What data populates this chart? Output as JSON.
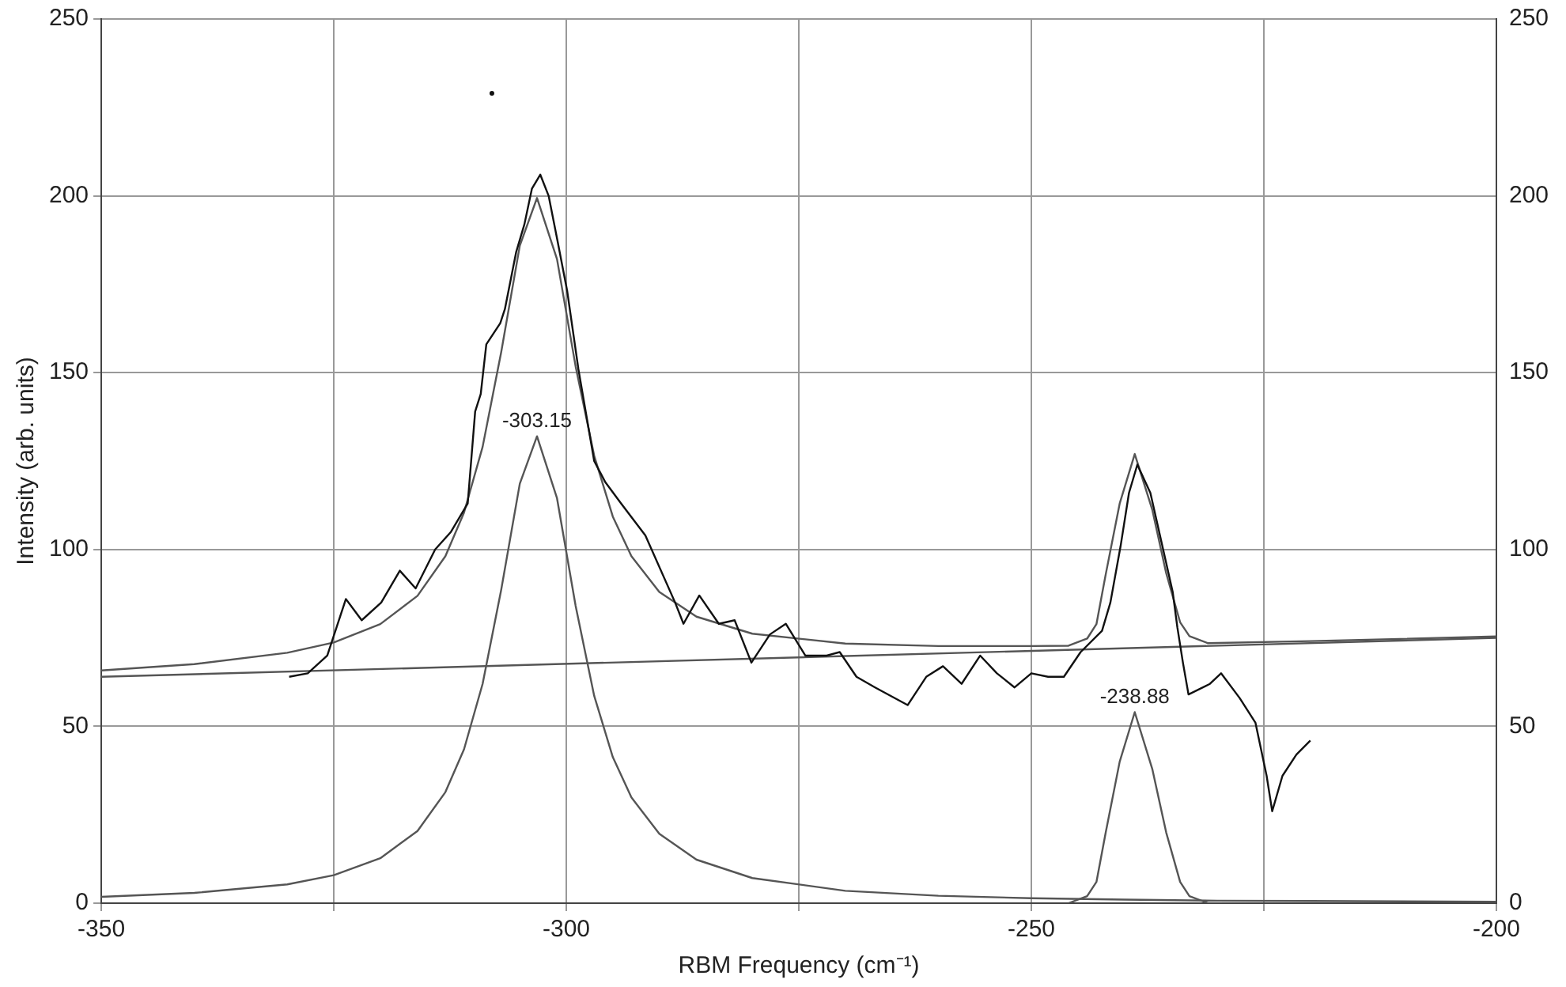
{
  "chart_data": {
    "type": "line",
    "xlabel": "RBM Frequency (cm⁻¹)",
    "ylabel": "Intensity (arb. units)",
    "xlim": [
      -350,
      -200
    ],
    "xticks": [
      -350,
      {
        "value": -325,
        "label": null
      },
      -300,
      {
        "value": -275,
        "label": null
      },
      -250,
      {
        "value": -225,
        "label": null
      },
      -200
    ],
    "ylim": [
      0,
      250
    ],
    "yticks": [
      0,
      50,
      100,
      150,
      200,
      250
    ],
    "y2lim": [
      0,
      250
    ],
    "y2ticks": [
      0,
      50,
      100,
      150,
      200,
      250
    ],
    "grid": true,
    "line_style": "solid",
    "annotations": [
      {
        "text": "-303.15",
        "x": -303.15,
        "y": 132
      },
      {
        "text": "-238.88",
        "x": -238.88,
        "y": 54
      }
    ],
    "series": [
      {
        "type": "line",
        "color": "#111111",
        "x": [
          -329.8,
          -327.8,
          -325.7,
          -323.7,
          -322.0,
          -319.9,
          -317.9,
          -316.2,
          -314.1,
          -312.4,
          -310.6,
          -309.8,
          -309.2,
          -308.9,
          -308.6,
          -307.1,
          -306.6,
          -305.4,
          -304.5,
          -303.7,
          -302.8,
          -301.9,
          -301.0,
          -299.9,
          -298.7,
          -297.0,
          -295.8,
          -294.1,
          -291.5,
          -288.3,
          -287.4,
          -285.7,
          -283.6,
          -281.9,
          -280.1,
          -278.1,
          -276.4,
          -274.3,
          -272.0,
          -270.6,
          -268.8,
          -266.8,
          -263.3,
          -261.3,
          -259.5,
          -257.5,
          -255.5,
          -253.7,
          -251.8,
          -250.0,
          -248.2,
          -246.5,
          -244.7,
          -242.4,
          -241.5,
          -240.4,
          -239.5,
          -238.6,
          -237.2,
          -236.0,
          -234.8,
          -234.3,
          -233.7,
          -233.1,
          -230.8,
          -229.6,
          -227.6,
          -225.9,
          -224.7,
          -224.1,
          -223.0,
          -221.5,
          -220.0
        ],
        "values": [
          64,
          65,
          70,
          86,
          80,
          85,
          94,
          89,
          100,
          105,
          113,
          139,
          144,
          151,
          158,
          164,
          168,
          184,
          192,
          202,
          206,
          200,
          188,
          173,
          151,
          125,
          119,
          113,
          104,
          85,
          79,
          87,
          79,
          80,
          68,
          76,
          79,
          70,
          70,
          71,
          64,
          61,
          56,
          64,
          67,
          62,
          70,
          65,
          61,
          65,
          64,
          64,
          71,
          77,
          85,
          101,
          116,
          124,
          116,
          102,
          88,
          78,
          68,
          59,
          62,
          65,
          58,
          51,
          36,
          26,
          36,
          42,
          46
        ]
      },
      {
        "type": "scatter",
        "color": "#111111",
        "x": [
          -308
        ],
        "values": [
          229
        ]
      },
      {
        "type": "line",
        "color": "#555555",
        "x": [
          -350,
          -340,
          -330,
          -325,
          -320,
          -316,
          -313,
          -311,
          -309,
          -307,
          -305,
          -303.15,
          -301,
          -299,
          -297,
          -295,
          -293,
          -290,
          -286,
          -280,
          -270,
          -260,
          -250,
          -246,
          -244,
          -243,
          -242,
          -240.5,
          -238.88,
          -237,
          -235.5,
          -234,
          -233,
          -231,
          -220,
          -200
        ],
        "values": [
          65.8,
          67.6,
          70.8,
          73.7,
          78.9,
          86.9,
          98.1,
          110.4,
          129,
          155.8,
          185.9,
          199.4,
          182.1,
          151.8,
          126.5,
          109.3,
          98.1,
          88,
          81,
          76.2,
          73.4,
          72.7,
          72.7,
          72.8,
          74.8,
          78.9,
          93,
          113,
          127,
          111.3,
          93.3,
          79.4,
          75.5,
          73.5,
          74.1,
          75.4
        ]
      },
      {
        "type": "line",
        "color": "#555555",
        "x": [
          -350,
          -200
        ],
        "values": [
          64,
          75
        ]
      },
      {
        "type": "line",
        "color": "#555555",
        "x": [
          -350,
          -340,
          -330,
          -325,
          -320,
          -316,
          -313,
          -311,
          -309,
          -307,
          -305,
          -303.15,
          -301,
          -299,
          -297,
          -295,
          -293,
          -290,
          -286,
          -280,
          -270,
          -260,
          -250,
          -240,
          -230,
          -220,
          -200
        ],
        "values": [
          1.8,
          2.9,
          5.3,
          7.9,
          12.7,
          20.4,
          31.4,
          43.5,
          62,
          88.6,
          118.6,
          132,
          114.5,
          84.1,
          58.6,
          41.3,
          29.9,
          19.6,
          12.3,
          7.1,
          3.5,
          2.1,
          1.4,
          1,
          0.7,
          0.6,
          0.4
        ]
      },
      {
        "type": "line",
        "color": "#555555",
        "x": [
          -246,
          -244,
          -243,
          -242,
          -240.5,
          -238.88,
          -237,
          -235.5,
          -234,
          -233,
          -231
        ],
        "values": [
          0,
          2,
          6,
          20,
          40,
          54,
          38,
          20,
          6,
          2,
          0
        ]
      }
    ]
  }
}
